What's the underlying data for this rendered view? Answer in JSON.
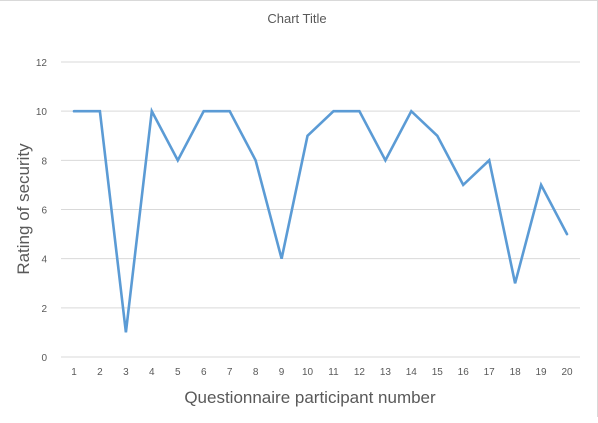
{
  "chart_data": {
    "type": "line",
    "title": "Chart Title",
    "xlabel": "Questionnaire participant number",
    "ylabel": "Rating of security",
    "x": [
      1,
      2,
      3,
      4,
      5,
      6,
      7,
      8,
      9,
      10,
      11,
      12,
      13,
      14,
      15,
      16,
      17,
      18,
      19,
      20
    ],
    "series": [
      {
        "values": [
          10,
          10,
          1,
          10,
          8,
          10,
          10,
          8,
          4,
          9,
          10,
          10,
          8,
          10,
          9,
          7,
          8,
          3,
          7,
          5
        ]
      }
    ],
    "ylim": [
      0,
      12
    ],
    "yticks": [
      0,
      2,
      4,
      6,
      8,
      10,
      12
    ],
    "grid": true,
    "legend": "none",
    "colors": {
      "line": "#5b9bd5",
      "grid": "#d9d9d9",
      "axis_text": "#595959"
    }
  }
}
